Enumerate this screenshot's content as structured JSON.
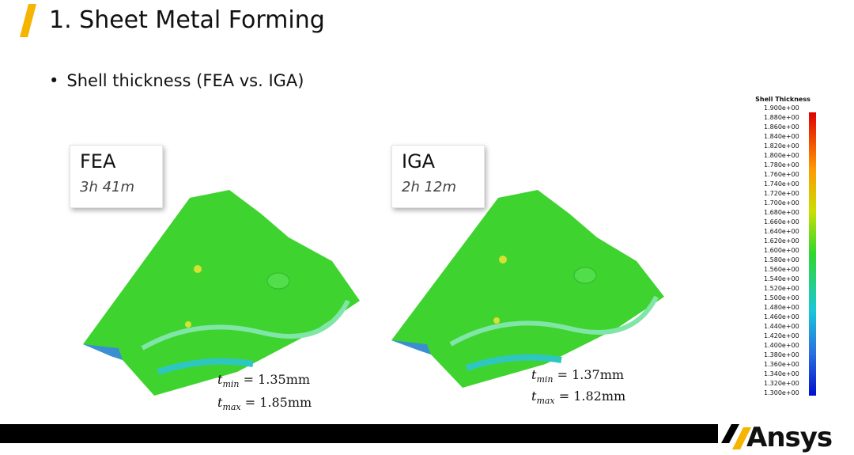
{
  "header": {
    "title": "1. Sheet Metal Forming"
  },
  "bullet": "Shell thickness (FEA vs. IGA)",
  "panels": [
    {
      "method": "FEA",
      "time": "3h 41m",
      "tmin": {
        "symbol": "t",
        "subscript": "min",
        "relation": "=",
        "value": "1.35mm"
      },
      "tmax": {
        "symbol": "t",
        "subscript": "max",
        "relation": "=",
        "value": "1.85mm"
      }
    },
    {
      "method": "IGA",
      "time": "2h 12m",
      "tmin": {
        "symbol": "t",
        "subscript": "min",
        "relation": "=",
        "value": "1.37mm"
      },
      "tmax": {
        "symbol": "t",
        "subscript": "max",
        "relation": "=",
        "value": "1.82mm"
      }
    }
  ],
  "legend": {
    "title": "Shell Thickness",
    "labels": [
      "1.900e+00",
      "1.880e+00",
      "1.860e+00",
      "1.840e+00",
      "1.820e+00",
      "1.800e+00",
      "1.780e+00",
      "1.760e+00",
      "1.740e+00",
      "1.720e+00",
      "1.700e+00",
      "1.680e+00",
      "1.660e+00",
      "1.640e+00",
      "1.620e+00",
      "1.600e+00",
      "1.580e+00",
      "1.560e+00",
      "1.540e+00",
      "1.520e+00",
      "1.500e+00",
      "1.480e+00",
      "1.460e+00",
      "1.440e+00",
      "1.420e+00",
      "1.400e+00",
      "1.380e+00",
      "1.360e+00",
      "1.340e+00",
      "1.320e+00",
      "1.300e+00"
    ]
  },
  "footer": {
    "logo": "Ansys"
  }
}
